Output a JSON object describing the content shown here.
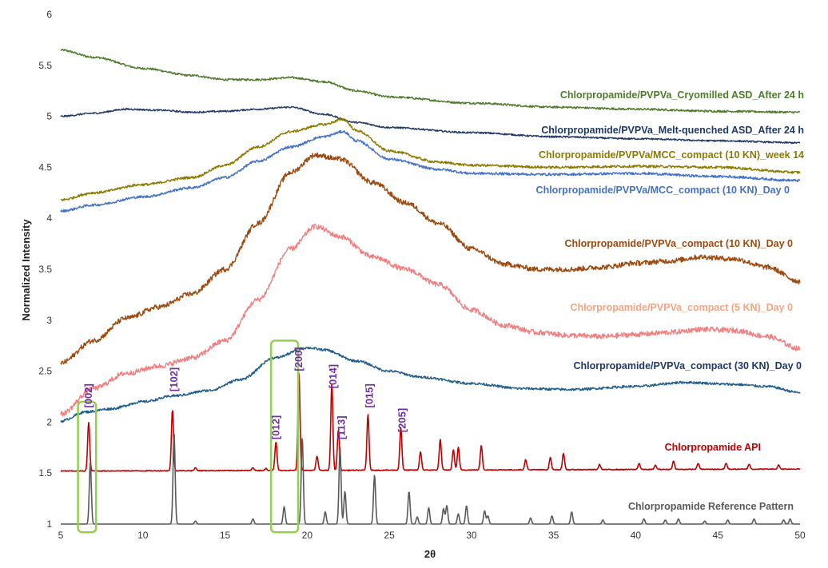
{
  "chart_data": {
    "type": "line",
    "title": "",
    "xlabel": "2θ",
    "ylabel": "Normalized Intensity",
    "xlim": [
      5,
      50
    ],
    "ylim": [
      1,
      6
    ],
    "x_ticks": [
      5,
      10,
      15,
      20,
      25,
      30,
      35,
      40,
      45,
      50
    ],
    "y_ticks": [
      1,
      1.5,
      2,
      2.5,
      3,
      3.5,
      4,
      4.5,
      5,
      5.5,
      6
    ],
    "y_tick_labels": [
      "1",
      "1.5",
      "2",
      "2.5",
      "3",
      "3.5",
      "4",
      "4.5",
      "5",
      "5.5",
      "6"
    ],
    "grid": false,
    "legend": "inline labels",
    "series": [
      {
        "name": "Chlorpropamide/PVPVa_Cryomilled ASD_After 24 h",
        "color": "#4e7a2c",
        "noise": 0.01,
        "points": [
          [
            5,
            5.65
          ],
          [
            7,
            5.58
          ],
          [
            10,
            5.47
          ],
          [
            13,
            5.4
          ],
          [
            15,
            5.36
          ],
          [
            17,
            5.36
          ],
          [
            19,
            5.38
          ],
          [
            21,
            5.34
          ],
          [
            23,
            5.25
          ],
          [
            25,
            5.19
          ],
          [
            30,
            5.13
          ],
          [
            35,
            5.09
          ],
          [
            40,
            5.07
          ],
          [
            45,
            5.05
          ],
          [
            50,
            5.04
          ]
        ]
      },
      {
        "name": "Chlorpropamide/PVPVa_Melt-quenched ASD_After 24 h",
        "color": "#1f3864",
        "noise": 0.008,
        "points": [
          [
            5,
            5.0
          ],
          [
            7,
            5.03
          ],
          [
            9,
            5.07
          ],
          [
            11,
            5.06
          ],
          [
            13,
            5.04
          ],
          [
            15,
            5.05
          ],
          [
            17,
            5.07
          ],
          [
            19,
            5.09
          ],
          [
            21,
            5.02
          ],
          [
            23,
            4.94
          ],
          [
            25,
            4.89
          ],
          [
            30,
            4.84
          ],
          [
            35,
            4.8
          ],
          [
            40,
            4.78
          ],
          [
            45,
            4.76
          ],
          [
            50,
            4.74
          ]
        ]
      },
      {
        "name": "Chlorpropamide/PVPVa/MCC_compact (10 KN)_week 14",
        "color": "#8c7a00",
        "noise": 0.012,
        "points": [
          [
            5,
            4.18
          ],
          [
            7,
            4.25
          ],
          [
            10,
            4.33
          ],
          [
            13,
            4.4
          ],
          [
            15,
            4.52
          ],
          [
            17,
            4.7
          ],
          [
            19,
            4.85
          ],
          [
            21,
            4.92
          ],
          [
            22.2,
            4.97
          ],
          [
            23,
            4.86
          ],
          [
            25,
            4.66
          ],
          [
            28,
            4.55
          ],
          [
            30,
            4.52
          ],
          [
            35,
            4.5
          ],
          [
            40,
            4.51
          ],
          [
            45,
            4.5
          ],
          [
            50,
            4.45
          ]
        ]
      },
      {
        "name": "Chlorpropamide/PVPVa/MCC_compact (10 KN)_Day 0",
        "color": "#4472c4",
        "noise": 0.012,
        "points": [
          [
            5,
            4.07
          ],
          [
            7,
            4.13
          ],
          [
            10,
            4.21
          ],
          [
            13,
            4.3
          ],
          [
            15,
            4.4
          ],
          [
            17,
            4.56
          ],
          [
            19,
            4.7
          ],
          [
            21,
            4.8
          ],
          [
            22.2,
            4.85
          ],
          [
            23,
            4.76
          ],
          [
            25,
            4.58
          ],
          [
            28,
            4.48
          ],
          [
            30,
            4.44
          ],
          [
            35,
            4.43
          ],
          [
            40,
            4.44
          ],
          [
            45,
            4.41
          ],
          [
            50,
            4.37
          ]
        ]
      },
      {
        "name": "Chlorpropamide/PVPVa_compact (10 KN)_Day 0",
        "color": "#9c4a0f",
        "noise": 0.025,
        "points": [
          [
            5,
            2.58
          ],
          [
            7,
            2.8
          ],
          [
            9,
            3.02
          ],
          [
            11,
            3.13
          ],
          [
            13,
            3.26
          ],
          [
            15,
            3.5
          ],
          [
            17,
            3.95
          ],
          [
            19,
            4.45
          ],
          [
            20.5,
            4.62
          ],
          [
            22,
            4.58
          ],
          [
            24,
            4.35
          ],
          [
            26,
            4.15
          ],
          [
            28,
            3.95
          ],
          [
            30,
            3.7
          ],
          [
            32,
            3.55
          ],
          [
            34,
            3.5
          ],
          [
            36,
            3.5
          ],
          [
            38,
            3.52
          ],
          [
            40,
            3.56
          ],
          [
            42,
            3.58
          ],
          [
            44,
            3.62
          ],
          [
            46,
            3.6
          ],
          [
            48,
            3.52
          ],
          [
            50,
            3.38
          ]
        ]
      },
      {
        "name": "Chlorpropamide/PVPVa_compact (5 KN)_Day 0",
        "color": "#f08080",
        "noise": 0.025,
        "points": [
          [
            5,
            2.08
          ],
          [
            7,
            2.33
          ],
          [
            9,
            2.48
          ],
          [
            11,
            2.55
          ],
          [
            13,
            2.63
          ],
          [
            15,
            2.8
          ],
          [
            17,
            3.2
          ],
          [
            19,
            3.7
          ],
          [
            20.5,
            3.92
          ],
          [
            22,
            3.82
          ],
          [
            24,
            3.62
          ],
          [
            26,
            3.5
          ],
          [
            28,
            3.35
          ],
          [
            30,
            3.1
          ],
          [
            32,
            2.95
          ],
          [
            34,
            2.88
          ],
          [
            36,
            2.85
          ],
          [
            38,
            2.84
          ],
          [
            40,
            2.86
          ],
          [
            42,
            2.88
          ],
          [
            44,
            2.91
          ],
          [
            46,
            2.9
          ],
          [
            48,
            2.84
          ],
          [
            50,
            2.72
          ]
        ]
      },
      {
        "name": "Chlorpropamide/PVPVa_compact (30 KN)_Day 0",
        "color": "#1f5c8a",
        "noise": 0.012,
        "points": [
          [
            5,
            2.01
          ],
          [
            6.5,
            2.1
          ],
          [
            8,
            2.13
          ],
          [
            10,
            2.2
          ],
          [
            12,
            2.26
          ],
          [
            14,
            2.31
          ],
          [
            16,
            2.42
          ],
          [
            18,
            2.63
          ],
          [
            20,
            2.73
          ],
          [
            21,
            2.71
          ],
          [
            23,
            2.6
          ],
          [
            25,
            2.5
          ],
          [
            27,
            2.44
          ],
          [
            30,
            2.38
          ],
          [
            33,
            2.33
          ],
          [
            36,
            2.32
          ],
          [
            40,
            2.35
          ],
          [
            43,
            2.39
          ],
          [
            46,
            2.37
          ],
          [
            48,
            2.35
          ],
          [
            50,
            2.29
          ]
        ]
      },
      {
        "name": "Chlorpropamide API",
        "color": "#c00000",
        "noise": 0.004,
        "baseline": 1.52,
        "baseline_end": 1.54,
        "peaks": [
          [
            6.7,
            0.48
          ],
          [
            11.8,
            0.6
          ],
          [
            13.2,
            0.03
          ],
          [
            16.7,
            0.03
          ],
          [
            17.5,
            0.02
          ],
          [
            18.1,
            0.28
          ],
          [
            19.5,
            0.95
          ],
          [
            20.6,
            0.14
          ],
          [
            21.5,
            0.85
          ],
          [
            21.9,
            0.4
          ],
          [
            23.7,
            0.55
          ],
          [
            25.7,
            0.42
          ],
          [
            26.9,
            0.18
          ],
          [
            28.1,
            0.3
          ],
          [
            28.9,
            0.2
          ],
          [
            29.2,
            0.22
          ],
          [
            30.6,
            0.24
          ],
          [
            33.3,
            0.1
          ],
          [
            34.8,
            0.12
          ],
          [
            35.6,
            0.16
          ],
          [
            37.8,
            0.05
          ],
          [
            40.2,
            0.06
          ],
          [
            41.2,
            0.04
          ],
          [
            42.3,
            0.08
          ],
          [
            43.8,
            0.06
          ],
          [
            45.5,
            0.06
          ],
          [
            46.9,
            0.05
          ],
          [
            48.7,
            0.04
          ]
        ]
      },
      {
        "name": "Chlorpropamide Reference Pattern",
        "color": "#595959",
        "noise": 0,
        "baseline": 1.0,
        "baseline_end": 1.0,
        "peaks": [
          [
            6.8,
            0.6
          ],
          [
            11.9,
            0.89
          ],
          [
            13.2,
            0.03
          ],
          [
            16.7,
            0.05
          ],
          [
            18.6,
            0.17
          ],
          [
            19.7,
            0.85
          ],
          [
            21.1,
            0.12
          ],
          [
            22.0,
            0.75
          ],
          [
            22.3,
            0.32
          ],
          [
            24.1,
            0.48
          ],
          [
            26.2,
            0.32
          ],
          [
            26.7,
            0.07
          ],
          [
            27.4,
            0.16
          ],
          [
            28.3,
            0.15
          ],
          [
            28.5,
            0.18
          ],
          [
            29.2,
            0.1
          ],
          [
            29.7,
            0.18
          ],
          [
            30.8,
            0.13
          ],
          [
            31.0,
            0.08
          ],
          [
            33.6,
            0.06
          ],
          [
            34.9,
            0.08
          ],
          [
            36.1,
            0.12
          ],
          [
            38.0,
            0.04
          ],
          [
            40.5,
            0.05
          ],
          [
            41.8,
            0.04
          ],
          [
            42.6,
            0.05
          ],
          [
            44.2,
            0.03
          ],
          [
            45.6,
            0.04
          ],
          [
            47.2,
            0.05
          ],
          [
            49.0,
            0.04
          ],
          [
            49.4,
            0.05
          ]
        ]
      }
    ],
    "series_labels": [
      {
        "text": "Chlorpropamide/PVPVa_Cryomilled ASD_After 24 h",
        "color": "#4e7a2c"
      },
      {
        "text": "Chlorpropamide/PVPVa_Melt-quenched ASD_After 24 h",
        "color": "#1f3864"
      },
      {
        "text": "Chlorpropamide/PVPVa/MCC_compact (10 KN)_week 14",
        "color": "#8c7a00"
      },
      {
        "text": "Chlorpropamide/PVPVa/MCC_compact (10 KN)_Day 0",
        "color": "#4472c4"
      },
      {
        "text": "Chlorpropamide/PVPVa_compact (10 KN)_Day 0",
        "color": "#9c4a0f"
      },
      {
        "text": "Chlorpropamide/PVPVa_compact (5 KN)_Day 0",
        "color": "#f4a582"
      },
      {
        "text": "Chlorpropamide/PVPVa_compact (30 KN)_Day 0",
        "color": "#1f3864"
      },
      {
        "text": "Chlorpropamide API",
        "color": "#c00000"
      },
      {
        "text": "Chlorpropamide Reference Pattern",
        "color": "#595959"
      }
    ],
    "peak_labels": [
      {
        "text": "[002]",
        "x": 6.7,
        "y": 2.14
      },
      {
        "text": "[102]",
        "x": 11.9,
        "y": 2.3
      },
      {
        "text": "[012]",
        "x": 18.1,
        "y": 1.83
      },
      {
        "text": "[200]",
        "x": 19.5,
        "y": 2.5
      },
      {
        "text": "[014]",
        "x": 21.6,
        "y": 2.33
      },
      {
        "text": "[113]",
        "x": 22.1,
        "y": 1.83
      },
      {
        "text": "[015]",
        "x": 23.8,
        "y": 2.14
      },
      {
        "text": "[205]",
        "x": 25.8,
        "y": 1.9
      }
    ],
    "highlight_boxes": [
      {
        "x0": 6.05,
        "x1": 7.15,
        "y0": 0.92,
        "y1": 2.2,
        "color": "#92d050"
      },
      {
        "x0": 17.8,
        "x1": 19.45,
        "y0": 0.92,
        "y1": 2.8,
        "color": "#92d050"
      }
    ]
  }
}
